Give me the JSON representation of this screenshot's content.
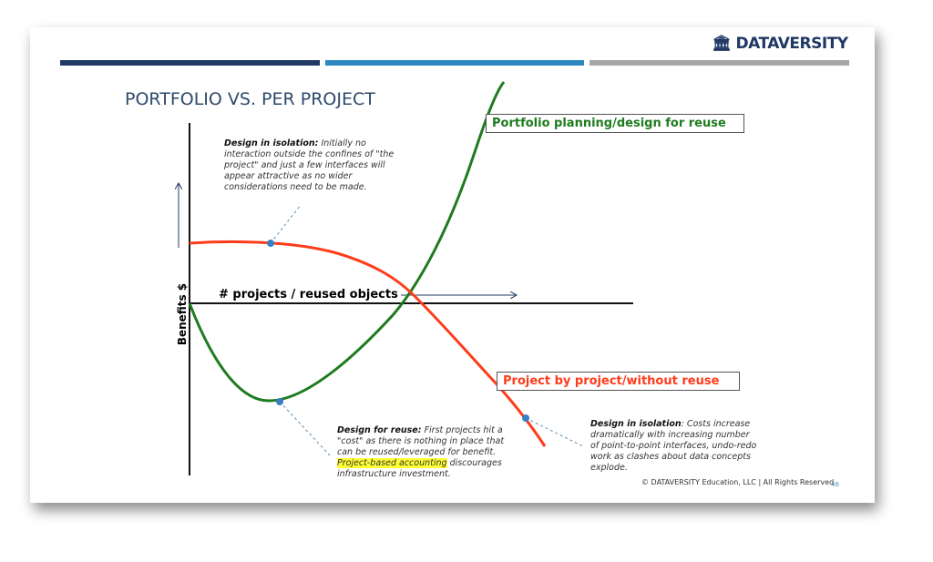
{
  "logo": {
    "text": "DATAVERSITY",
    "icon": "pillars-icon"
  },
  "title": "PORTFOLIO VS. PER PROJECT",
  "colors": {
    "bar1": "#1f3864",
    "bar2": "#2e86c1",
    "bar3": "#a6a6a6",
    "title": "#2e4a6b",
    "green": "#1e7b1e",
    "red": "#ff3b1a",
    "dot": "#3a7fc4",
    "highlight": "#ffff33"
  },
  "axes": {
    "y_label": "Benefits $",
    "x_label": "# projects / reused objects"
  },
  "legend": {
    "green": "Portfolio planning/design for reuse",
    "red": "Project by project/without reuse"
  },
  "notes": {
    "top": {
      "head": "Design in isolation:",
      "body": " Initially no interaction outside the confines of \"the project\" and just a few interfaces will appear attractive as no wider considerations need to be made."
    },
    "bottom_left": {
      "head": "Design for reuse:",
      "body": " First projects hit a \"cost\" as there is nothing in place that can be reused/leveraged for benefit. ",
      "highlight": "Project-based accounting",
      "tail": " discourages infrastructure investment."
    },
    "bottom_right": {
      "head": "Design in isolation",
      "body": ": Costs increase dramatically with increasing number of point-to-point interfaces, undo-redo work as clashes about data concepts explode."
    }
  },
  "footer": {
    "copyright": "© DATAVERSITY Education, LLC | All Rights Reserved",
    "page": "46"
  }
}
